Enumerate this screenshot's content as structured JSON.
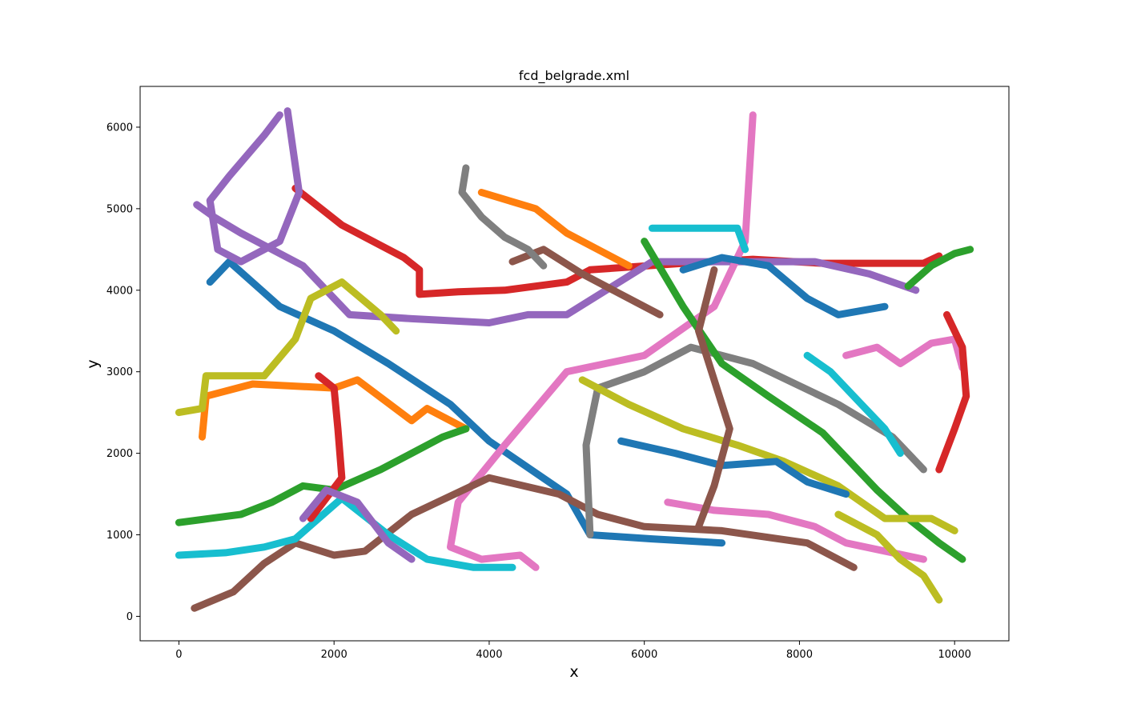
{
  "chart_data": {
    "type": "line",
    "title": "fcd_belgrade.xml",
    "xlabel": "x",
    "ylabel": "y",
    "xlim": [
      -500,
      10700
    ],
    "ylim": [
      -300,
      6500
    ],
    "x_ticks": [
      0,
      2000,
      4000,
      6000,
      8000,
      10000
    ],
    "y_ticks": [
      0,
      1000,
      2000,
      3000,
      4000,
      5000,
      6000
    ],
    "grid": false,
    "legend": "none",
    "colors": [
      "#1f77b4",
      "#ff7f0e",
      "#2ca02c",
      "#d62728",
      "#9467bd",
      "#8c564b",
      "#e377c2",
      "#7f7f7f",
      "#bcbd22",
      "#17becf"
    ],
    "series": [
      {
        "color": "#d62728",
        "points": [
          [
            1500,
            5250
          ],
          [
            2100,
            4800
          ],
          [
            2900,
            4400
          ],
          [
            3100,
            4250
          ],
          [
            3100,
            3950
          ],
          [
            3600,
            3980
          ],
          [
            4200,
            4000
          ],
          [
            5000,
            4100
          ],
          [
            5300,
            4250
          ],
          [
            6500,
            4330
          ],
          [
            7400,
            4380
          ],
          [
            8300,
            4330
          ],
          [
            9600,
            4330
          ],
          [
            9800,
            4420
          ]
        ]
      },
      {
        "color": "#9467bd",
        "points": [
          [
            230,
            5050
          ],
          [
            450,
            4900
          ],
          [
            800,
            4700
          ],
          [
            1600,
            4300
          ],
          [
            2200,
            3700
          ],
          [
            3000,
            3650
          ],
          [
            4000,
            3600
          ],
          [
            4500,
            3700
          ],
          [
            5000,
            3700
          ],
          [
            6100,
            4350
          ],
          [
            7100,
            4350
          ],
          [
            8200,
            4350
          ],
          [
            8900,
            4200
          ],
          [
            9500,
            4000
          ]
        ]
      },
      {
        "color": "#1f77b4",
        "points": [
          [
            400,
            4100
          ],
          [
            650,
            4350
          ],
          [
            1300,
            3800
          ],
          [
            2000,
            3500
          ],
          [
            2700,
            3100
          ],
          [
            3500,
            2600
          ],
          [
            4000,
            2150
          ],
          [
            5000,
            1500
          ],
          [
            5300,
            1000
          ],
          [
            6100,
            950
          ],
          [
            7000,
            900
          ]
        ]
      },
      {
        "color": "#e377c2",
        "points": [
          [
            7400,
            6150
          ],
          [
            7300,
            4600
          ],
          [
            6900,
            3800
          ],
          [
            6000,
            3200
          ],
          [
            5000,
            3000
          ],
          [
            4200,
            2100
          ],
          [
            3600,
            1400
          ],
          [
            3500,
            850
          ],
          [
            3900,
            700
          ],
          [
            4400,
            750
          ],
          [
            4600,
            600
          ]
        ]
      },
      {
        "color": "#8c564b",
        "points": [
          [
            200,
            100
          ],
          [
            700,
            300
          ],
          [
            1100,
            650
          ],
          [
            1500,
            900
          ],
          [
            2000,
            750
          ],
          [
            2400,
            800
          ],
          [
            3000,
            1250
          ],
          [
            4000,
            1700
          ],
          [
            4900,
            1500
          ],
          [
            5400,
            1250
          ],
          [
            6000,
            1100
          ],
          [
            7000,
            1050
          ],
          [
            8100,
            900
          ],
          [
            8700,
            600
          ]
        ]
      },
      {
        "color": "#7f7f7f",
        "points": [
          [
            5300,
            1000
          ],
          [
            5250,
            2100
          ],
          [
            5400,
            2800
          ],
          [
            6000,
            3000
          ],
          [
            6600,
            3300
          ],
          [
            7400,
            3100
          ],
          [
            8500,
            2600
          ],
          [
            9200,
            2200
          ],
          [
            9600,
            1800
          ]
        ]
      },
      {
        "color": "#2ca02c",
        "points": [
          [
            6000,
            4600
          ],
          [
            6500,
            3800
          ],
          [
            7000,
            3100
          ],
          [
            7600,
            2700
          ],
          [
            8300,
            2250
          ],
          [
            9000,
            1550
          ],
          [
            9400,
            1200
          ],
          [
            9800,
            900
          ],
          [
            10100,
            700
          ]
        ]
      },
      {
        "color": "#17becf",
        "points": [
          [
            0,
            750
          ],
          [
            600,
            780
          ],
          [
            1100,
            850
          ],
          [
            1500,
            950
          ],
          [
            2100,
            1450
          ],
          [
            2700,
            1000
          ],
          [
            3200,
            700
          ],
          [
            3800,
            600
          ],
          [
            4300,
            600
          ]
        ]
      },
      {
        "color": "#ff7f0e",
        "points": [
          [
            300,
            2200
          ],
          [
            350,
            2700
          ],
          [
            950,
            2850
          ],
          [
            2000,
            2800
          ],
          [
            2300,
            2900
          ],
          [
            3000,
            2400
          ],
          [
            3200,
            2550
          ],
          [
            3700,
            2300
          ]
        ]
      },
      {
        "color": "#bcbd22",
        "points": [
          [
            0,
            2500
          ],
          [
            300,
            2550
          ],
          [
            350,
            2950
          ],
          [
            1100,
            2950
          ],
          [
            1500,
            3400
          ],
          [
            1700,
            3900
          ],
          [
            2100,
            4100
          ],
          [
            2600,
            3700
          ],
          [
            2800,
            3500
          ]
        ]
      },
      {
        "color": "#2ca02c",
        "points": [
          [
            0,
            1150
          ],
          [
            400,
            1200
          ],
          [
            800,
            1250
          ],
          [
            1200,
            1400
          ],
          [
            1600,
            1600
          ],
          [
            2000,
            1550
          ],
          [
            2600,
            1800
          ],
          [
            3000,
            2000
          ],
          [
            3400,
            2200
          ],
          [
            3700,
            2300
          ]
        ]
      },
      {
        "color": "#d62728",
        "points": [
          [
            1800,
            2950
          ],
          [
            2000,
            2800
          ],
          [
            2050,
            2300
          ],
          [
            2100,
            1700
          ],
          [
            1900,
            1450
          ],
          [
            1700,
            1200
          ]
        ]
      },
      {
        "color": "#1f77b4",
        "points": [
          [
            6500,
            4250
          ],
          [
            7000,
            4400
          ],
          [
            7600,
            4300
          ],
          [
            8100,
            3900
          ],
          [
            8500,
            3700
          ],
          [
            9100,
            3800
          ]
        ]
      },
      {
        "color": "#9467bd",
        "points": [
          [
            1600,
            1200
          ],
          [
            1900,
            1550
          ],
          [
            2300,
            1400
          ],
          [
            2700,
            900
          ],
          [
            3000,
            700
          ]
        ]
      },
      {
        "color": "#e377c2",
        "points": [
          [
            6300,
            1400
          ],
          [
            6900,
            1300
          ],
          [
            7600,
            1250
          ],
          [
            8200,
            1100
          ],
          [
            8600,
            900
          ],
          [
            9600,
            700
          ]
        ]
      },
      {
        "color": "#8c564b",
        "points": [
          [
            4300,
            4350
          ],
          [
            4700,
            4500
          ],
          [
            5200,
            4200
          ],
          [
            5600,
            4000
          ],
          [
            6200,
            3700
          ]
        ]
      },
      {
        "color": "#bcbd22",
        "points": [
          [
            5200,
            2900
          ],
          [
            5800,
            2600
          ],
          [
            6500,
            2300
          ],
          [
            7200,
            2100
          ],
          [
            7800,
            1900
          ],
          [
            8500,
            1600
          ],
          [
            9100,
            1200
          ],
          [
            9700,
            1200
          ],
          [
            10000,
            1050
          ]
        ]
      },
      {
        "color": "#17becf",
        "points": [
          [
            6100,
            4760
          ],
          [
            6700,
            4760
          ],
          [
            7200,
            4760
          ],
          [
            7300,
            4500
          ]
        ]
      },
      {
        "color": "#7f7f7f",
        "points": [
          [
            3700,
            5500
          ],
          [
            3650,
            5200
          ],
          [
            3900,
            4900
          ],
          [
            4200,
            4650
          ],
          [
            4500,
            4500
          ],
          [
            4700,
            4300
          ]
        ]
      },
      {
        "color": "#ff7f0e",
        "points": [
          [
            3900,
            5200
          ],
          [
            4600,
            5000
          ],
          [
            5000,
            4700
          ],
          [
            5400,
            4500
          ],
          [
            5800,
            4300
          ]
        ]
      },
      {
        "color": "#9467bd",
        "points": [
          [
            1400,
            6200
          ],
          [
            1550,
            5200
          ],
          [
            1300,
            4600
          ],
          [
            800,
            4350
          ],
          [
            500,
            4500
          ],
          [
            400,
            5100
          ],
          [
            650,
            5400
          ],
          [
            1100,
            5900
          ],
          [
            1300,
            6150
          ]
        ]
      },
      {
        "color": "#e377c2",
        "points": [
          [
            8600,
            3200
          ],
          [
            9000,
            3300
          ],
          [
            9300,
            3100
          ],
          [
            9700,
            3350
          ],
          [
            10000,
            3400
          ],
          [
            10100,
            3050
          ]
        ]
      },
      {
        "color": "#2ca02c",
        "points": [
          [
            9400,
            4050
          ],
          [
            9700,
            4300
          ],
          [
            10000,
            4450
          ],
          [
            10200,
            4500
          ]
        ]
      },
      {
        "color": "#d62728",
        "points": [
          [
            9900,
            3700
          ],
          [
            10100,
            3300
          ],
          [
            10150,
            2700
          ],
          [
            10000,
            2300
          ],
          [
            9800,
            1800
          ]
        ]
      },
      {
        "color": "#1f77b4",
        "points": [
          [
            5700,
            2150
          ],
          [
            6400,
            2000
          ],
          [
            7000,
            1850
          ],
          [
            7700,
            1900
          ],
          [
            8100,
            1650
          ],
          [
            8600,
            1500
          ]
        ]
      },
      {
        "color": "#bcbd22",
        "points": [
          [
            8500,
            1250
          ],
          [
            9000,
            1000
          ],
          [
            9300,
            700
          ],
          [
            9600,
            500
          ],
          [
            9800,
            200
          ]
        ]
      },
      {
        "color": "#8c564b",
        "points": [
          [
            6900,
            4250
          ],
          [
            6700,
            3500
          ],
          [
            6900,
            2900
          ],
          [
            7100,
            2300
          ],
          [
            6900,
            1600
          ],
          [
            6700,
            1100
          ]
        ]
      },
      {
        "color": "#17becf",
        "points": [
          [
            8100,
            3200
          ],
          [
            8400,
            3000
          ],
          [
            8800,
            2600
          ],
          [
            9100,
            2300
          ],
          [
            9300,
            2000
          ]
        ]
      }
    ]
  }
}
